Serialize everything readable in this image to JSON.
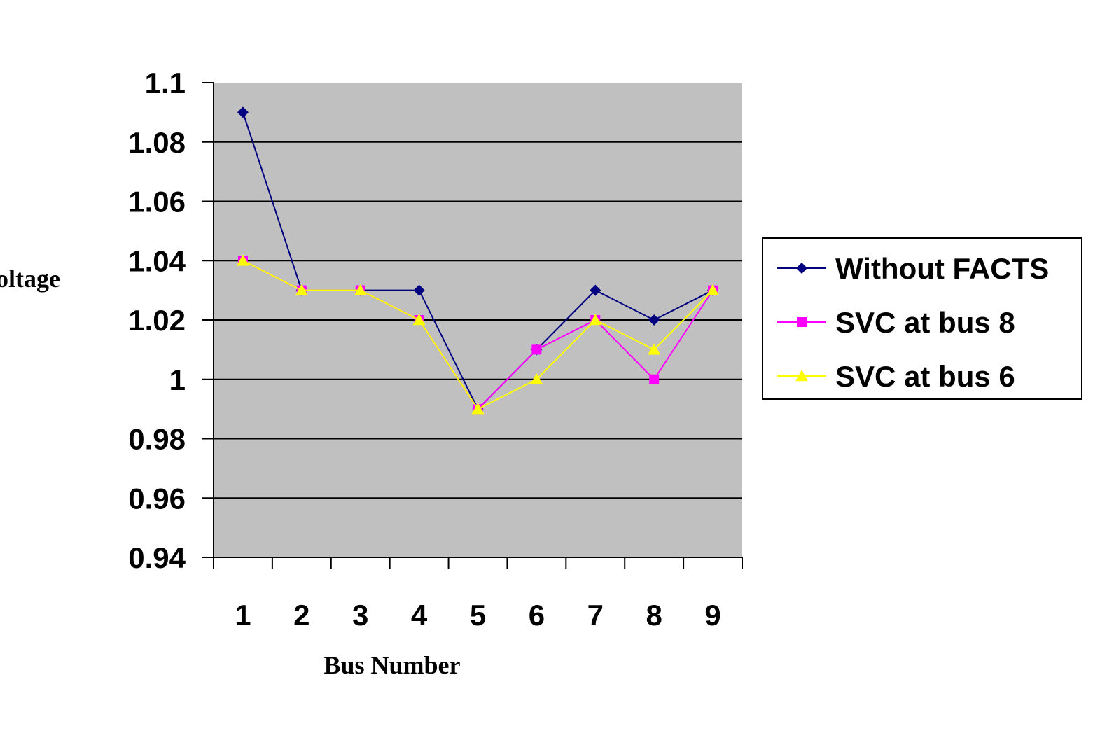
{
  "chart_data": {
    "type": "line",
    "xlabel": "Bus Number",
    "ylabel": "oltage",
    "categories": [
      "1",
      "2",
      "3",
      "4",
      "5",
      "6",
      "7",
      "8",
      "9"
    ],
    "yticks": [
      "1.1",
      "1.08",
      "1.06",
      "1.04",
      "1.02",
      "1",
      "0.98",
      "0.96",
      "0.94"
    ],
    "ylim": [
      0.94,
      1.1
    ],
    "grid": true,
    "legend_position": "right",
    "series": [
      {
        "name": "Without FACTS",
        "values": [
          1.09,
          1.03,
          1.03,
          1.03,
          0.99,
          1.01,
          1.03,
          1.02,
          1.03
        ],
        "color": "#000080",
        "marker": "diamond"
      },
      {
        "name": "SVC at bus 8",
        "values": [
          1.04,
          1.03,
          1.03,
          1.02,
          0.99,
          1.01,
          1.02,
          1.0,
          1.03
        ],
        "color": "#ff00ff",
        "marker": "square"
      },
      {
        "name": "SVC at bus 6",
        "values": [
          1.04,
          1.03,
          1.03,
          1.02,
          0.99,
          1.0,
          1.02,
          1.01,
          1.03
        ],
        "color": "#ffff00",
        "marker": "triangle"
      }
    ],
    "colors": {
      "plot_background": "#c0c0c0",
      "gridline": "#000000"
    }
  }
}
